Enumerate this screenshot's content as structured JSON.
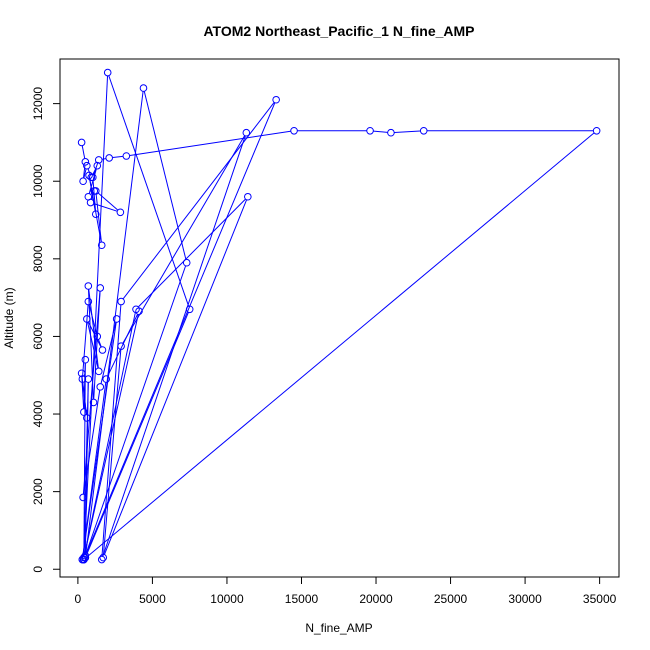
{
  "chart_data": {
    "type": "line",
    "title": "ATOM2 Northeast_Pacific_1 N_fine_AMP",
    "xlabel": "N_fine_AMP",
    "ylabel": "Altitude (m)",
    "xlim": [
      -1200,
      36300
    ],
    "ylim": [
      -200,
      13150
    ],
    "x_ticks": [
      0,
      5000,
      10000,
      15000,
      20000,
      25000,
      30000,
      35000
    ],
    "y_ticks": [
      0,
      2000,
      4000,
      6000,
      8000,
      10000,
      12000
    ],
    "x_tick_labels": [
      "0",
      "5000",
      "10000",
      "15000",
      "20000",
      "25000",
      "30000",
      "35000"
    ],
    "y_tick_labels": [
      "0",
      "2000",
      "4000",
      "6000",
      "8000",
      "10000",
      "12000"
    ],
    "line_color": "#0000ff",
    "marker": "open-circle",
    "grid": false,
    "series": [
      {
        "points": [
          [
            250,
            11000
          ],
          [
            500,
            10500
          ],
          [
            350,
            10000
          ],
          [
            600,
            10400
          ],
          [
            900,
            10100
          ],
          [
            1300,
            10400
          ],
          [
            700,
            9600
          ],
          [
            1100,
            9750
          ],
          [
            850,
            9450
          ],
          [
            2850,
            9200
          ],
          [
            1200,
            9750
          ],
          [
            1600,
            8350
          ],
          [
            750,
            10150
          ],
          [
            1200,
            9150
          ],
          [
            1000,
            10100
          ],
          [
            1400,
            10550
          ],
          [
            2100,
            10600
          ],
          [
            3250,
            10650
          ],
          [
            14500,
            11300
          ],
          [
            19600,
            11300
          ],
          [
            21000,
            11250
          ],
          [
            23200,
            11300
          ],
          [
            34800,
            11300
          ],
          [
            400,
            250
          ],
          [
            2000,
            12800
          ],
          [
            7500,
            6700
          ],
          [
            500,
            300
          ],
          [
            4400,
            12400
          ],
          [
            7300,
            7900
          ],
          [
            500,
            350
          ],
          [
            13300,
            12100
          ],
          [
            2900,
            6900
          ],
          [
            1600,
            250
          ],
          [
            11300,
            11250
          ],
          [
            2900,
            5750
          ],
          [
            1700,
            300
          ],
          [
            11400,
            9600
          ],
          [
            3900,
            6700
          ],
          [
            400,
            300
          ],
          [
            4100,
            6650
          ],
          [
            1900,
            4900
          ],
          [
            300,
            250
          ],
          [
            2600,
            6450
          ],
          [
            1500,
            4700
          ],
          [
            350,
            1850
          ],
          [
            1500,
            7250
          ],
          [
            1050,
            4300
          ],
          [
            700,
            7300
          ],
          [
            1400,
            5100
          ],
          [
            600,
            6450
          ],
          [
            1650,
            5650
          ],
          [
            1300,
            6000
          ],
          [
            700,
            6900
          ],
          [
            300,
            4900
          ],
          [
            600,
            3900
          ],
          [
            250,
            5050
          ],
          [
            400,
            4050
          ],
          [
            500,
            5400
          ],
          [
            400,
            250
          ],
          [
            700,
            4900
          ],
          [
            500,
            300
          ],
          [
            400,
            250
          ],
          [
            300,
            250
          ]
        ]
      }
    ]
  }
}
